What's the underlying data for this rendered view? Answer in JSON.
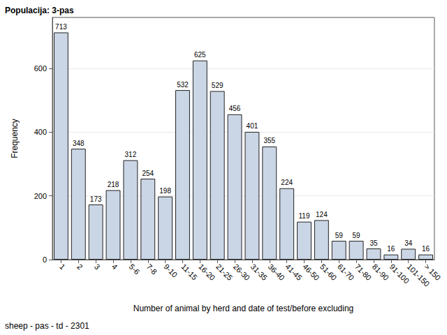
{
  "chart_data": {
    "type": "bar",
    "title": "Populacija: 3-pas",
    "x_label": "Number of animal by herd and date of test/before excluding",
    "y_label": "Frequency",
    "footnote": "sheep - pas - td - 2301",
    "categories": [
      "1",
      "2",
      "3",
      "4",
      "5-6",
      "7-8",
      "9-10",
      "11-15",
      "16-20",
      "21-25",
      "26-30",
      "31-35",
      "36-40",
      "41-45",
      "46-50",
      "51-60",
      "61-70",
      "71-80",
      "81-90",
      "91-100",
      "101-150",
      "> 150"
    ],
    "values": [
      713,
      348,
      173,
      218,
      312,
      254,
      198,
      532,
      625,
      529,
      456,
      401,
      355,
      224,
      119,
      124,
      59,
      59,
      35,
      16,
      34,
      16
    ],
    "color": "#cad5e5",
    "ylim": [
      0,
      760
    ],
    "yticks": [
      0,
      200,
      400,
      600
    ],
    "grid": true,
    "data_labels": true
  }
}
